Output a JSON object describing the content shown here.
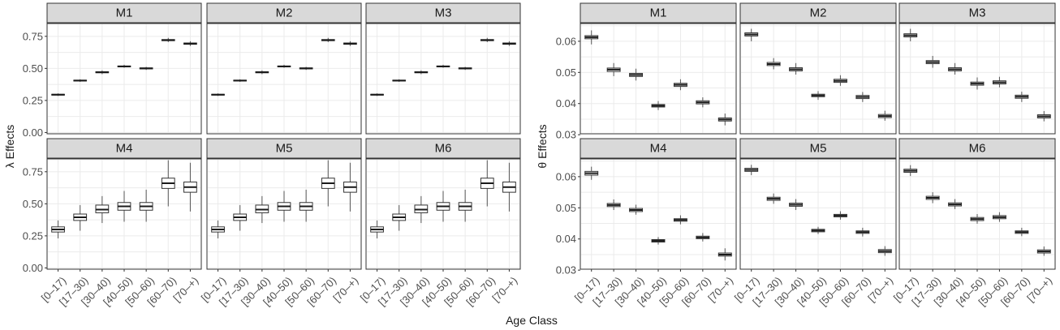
{
  "x_title": "Age Class",
  "chart_data": [
    {
      "type": "boxplot",
      "ylabel": "λ Effects",
      "ylim": [
        -0.01,
        0.85
      ],
      "yticks": [
        0.0,
        0.25,
        0.5,
        0.75
      ],
      "ytick_labels": [
        "0.00",
        "0.25",
        "0.50",
        "0.75"
      ],
      "categories": [
        "[0–17)",
        "[17–30)",
        "[30–40)",
        "[40–50)",
        "[50–60)",
        "[60–70)",
        "[70–+)"
      ],
      "facets": [
        {
          "label": "M1",
          "boxes": [
            {
              "min": 0.285,
              "q1": 0.292,
              "median": 0.295,
              "q3": 0.298,
              "max": 0.305
            },
            {
              "min": 0.395,
              "q1": 0.402,
              "median": 0.405,
              "q3": 0.408,
              "max": 0.415
            },
            {
              "min": 0.455,
              "q1": 0.466,
              "median": 0.47,
              "q3": 0.474,
              "max": 0.485
            },
            {
              "min": 0.505,
              "q1": 0.512,
              "median": 0.515,
              "q3": 0.519,
              "max": 0.528
            },
            {
              "min": 0.488,
              "q1": 0.496,
              "median": 0.5,
              "q3": 0.504,
              "max": 0.512
            },
            {
              "min": 0.705,
              "q1": 0.716,
              "median": 0.72,
              "q3": 0.725,
              "max": 0.738
            },
            {
              "min": 0.675,
              "q1": 0.688,
              "median": 0.693,
              "q3": 0.698,
              "max": 0.712
            }
          ]
        },
        {
          "label": "M2",
          "boxes": [
            {
              "min": 0.285,
              "q1": 0.292,
              "median": 0.295,
              "q3": 0.298,
              "max": 0.305
            },
            {
              "min": 0.395,
              "q1": 0.402,
              "median": 0.405,
              "q3": 0.408,
              "max": 0.415
            },
            {
              "min": 0.455,
              "q1": 0.466,
              "median": 0.47,
              "q3": 0.474,
              "max": 0.485
            },
            {
              "min": 0.505,
              "q1": 0.512,
              "median": 0.515,
              "q3": 0.519,
              "max": 0.528
            },
            {
              "min": 0.488,
              "q1": 0.496,
              "median": 0.5,
              "q3": 0.504,
              "max": 0.512
            },
            {
              "min": 0.705,
              "q1": 0.716,
              "median": 0.72,
              "q3": 0.725,
              "max": 0.738
            },
            {
              "min": 0.675,
              "q1": 0.688,
              "median": 0.693,
              "q3": 0.698,
              "max": 0.712
            }
          ]
        },
        {
          "label": "M3",
          "boxes": [
            {
              "min": 0.285,
              "q1": 0.292,
              "median": 0.295,
              "q3": 0.298,
              "max": 0.305
            },
            {
              "min": 0.395,
              "q1": 0.402,
              "median": 0.405,
              "q3": 0.408,
              "max": 0.415
            },
            {
              "min": 0.455,
              "q1": 0.466,
              "median": 0.47,
              "q3": 0.474,
              "max": 0.485
            },
            {
              "min": 0.505,
              "q1": 0.512,
              "median": 0.515,
              "q3": 0.519,
              "max": 0.528
            },
            {
              "min": 0.488,
              "q1": 0.496,
              "median": 0.5,
              "q3": 0.504,
              "max": 0.512
            },
            {
              "min": 0.705,
              "q1": 0.716,
              "median": 0.72,
              "q3": 0.725,
              "max": 0.738
            },
            {
              "min": 0.675,
              "q1": 0.688,
              "median": 0.693,
              "q3": 0.698,
              "max": 0.712
            }
          ]
        },
        {
          "label": "M4",
          "boxes": [
            {
              "min": 0.23,
              "q1": 0.28,
              "median": 0.3,
              "q3": 0.32,
              "max": 0.37
            },
            {
              "min": 0.29,
              "q1": 0.37,
              "median": 0.395,
              "q3": 0.42,
              "max": 0.49
            },
            {
              "min": 0.35,
              "q1": 0.43,
              "median": 0.455,
              "q3": 0.49,
              "max": 0.56
            },
            {
              "min": 0.36,
              "q1": 0.45,
              "median": 0.48,
              "q3": 0.51,
              "max": 0.6
            },
            {
              "min": 0.36,
              "q1": 0.45,
              "median": 0.48,
              "q3": 0.51,
              "max": 0.61
            },
            {
              "min": 0.48,
              "q1": 0.62,
              "median": 0.66,
              "q3": 0.7,
              "max": 0.84
            },
            {
              "min": 0.44,
              "q1": 0.59,
              "median": 0.63,
              "q3": 0.67,
              "max": 0.82
            }
          ]
        },
        {
          "label": "M5",
          "boxes": [
            {
              "min": 0.23,
              "q1": 0.28,
              "median": 0.3,
              "q3": 0.32,
              "max": 0.37
            },
            {
              "min": 0.29,
              "q1": 0.37,
              "median": 0.395,
              "q3": 0.42,
              "max": 0.49
            },
            {
              "min": 0.35,
              "q1": 0.43,
              "median": 0.455,
              "q3": 0.49,
              "max": 0.56
            },
            {
              "min": 0.36,
              "q1": 0.45,
              "median": 0.48,
              "q3": 0.51,
              "max": 0.6
            },
            {
              "min": 0.36,
              "q1": 0.45,
              "median": 0.48,
              "q3": 0.51,
              "max": 0.61
            },
            {
              "min": 0.48,
              "q1": 0.62,
              "median": 0.66,
              "q3": 0.7,
              "max": 0.84
            },
            {
              "min": 0.44,
              "q1": 0.59,
              "median": 0.63,
              "q3": 0.67,
              "max": 0.82
            }
          ]
        },
        {
          "label": "M6",
          "boxes": [
            {
              "min": 0.23,
              "q1": 0.28,
              "median": 0.3,
              "q3": 0.32,
              "max": 0.37
            },
            {
              "min": 0.29,
              "q1": 0.37,
              "median": 0.395,
              "q3": 0.42,
              "max": 0.49
            },
            {
              "min": 0.35,
              "q1": 0.43,
              "median": 0.455,
              "q3": 0.49,
              "max": 0.56
            },
            {
              "min": 0.36,
              "q1": 0.45,
              "median": 0.48,
              "q3": 0.51,
              "max": 0.6
            },
            {
              "min": 0.36,
              "q1": 0.45,
              "median": 0.48,
              "q3": 0.51,
              "max": 0.61
            },
            {
              "min": 0.48,
              "q1": 0.62,
              "median": 0.66,
              "q3": 0.7,
              "max": 0.84
            },
            {
              "min": 0.44,
              "q1": 0.59,
              "median": 0.63,
              "q3": 0.67,
              "max": 0.82
            }
          ]
        }
      ]
    },
    {
      "type": "boxplot",
      "ylabel": "θ Effects",
      "ylim": [
        0.0303,
        0.0657
      ],
      "yticks": [
        0.03,
        0.04,
        0.05,
        0.06
      ],
      "ytick_labels": [
        "0.03",
        "0.04",
        "0.05",
        "0.06"
      ],
      "categories": [
        "[0–17)",
        "[17–30)",
        "[30–40)",
        "[40–50)",
        "[50–60)",
        "[60–70)",
        "[70–+)"
      ],
      "facets": [
        {
          "label": "M1",
          "boxes": [
            {
              "min": 0.059,
              "q1": 0.0608,
              "median": 0.0613,
              "q3": 0.0618,
              "max": 0.0635
            },
            {
              "min": 0.0488,
              "q1": 0.0503,
              "median": 0.0509,
              "q3": 0.0514,
              "max": 0.053
            },
            {
              "min": 0.0474,
              "q1": 0.0487,
              "median": 0.0492,
              "q3": 0.0497,
              "max": 0.0512
            },
            {
              "min": 0.0379,
              "q1": 0.0389,
              "median": 0.0393,
              "q3": 0.0397,
              "max": 0.0408
            },
            {
              "min": 0.0443,
              "q1": 0.0455,
              "median": 0.046,
              "q3": 0.0465,
              "max": 0.0478
            },
            {
              "min": 0.0388,
              "q1": 0.0399,
              "median": 0.0404,
              "q3": 0.0409,
              "max": 0.042
            },
            {
              "min": 0.033,
              "q1": 0.0344,
              "median": 0.0349,
              "q3": 0.0354,
              "max": 0.0368
            }
          ]
        },
        {
          "label": "M2",
          "boxes": [
            {
              "min": 0.06,
              "q1": 0.0617,
              "median": 0.0622,
              "q3": 0.0627,
              "max": 0.064
            },
            {
              "min": 0.051,
              "q1": 0.0522,
              "median": 0.0527,
              "q3": 0.0532,
              "max": 0.0546
            },
            {
              "min": 0.0493,
              "q1": 0.0505,
              "median": 0.051,
              "q3": 0.0515,
              "max": 0.053
            },
            {
              "min": 0.0412,
              "q1": 0.0422,
              "median": 0.0426,
              "q3": 0.043,
              "max": 0.044
            },
            {
              "min": 0.0457,
              "q1": 0.0468,
              "median": 0.0473,
              "q3": 0.0478,
              "max": 0.0491
            },
            {
              "min": 0.0405,
              "q1": 0.0416,
              "median": 0.0421,
              "q3": 0.0426,
              "max": 0.0437
            },
            {
              "min": 0.0345,
              "q1": 0.0355,
              "median": 0.036,
              "q3": 0.0365,
              "max": 0.0377
            }
          ]
        },
        {
          "label": "M3",
          "boxes": [
            {
              "min": 0.06,
              "q1": 0.0614,
              "median": 0.0619,
              "q3": 0.0624,
              "max": 0.064
            },
            {
              "min": 0.0515,
              "q1": 0.0528,
              "median": 0.0533,
              "q3": 0.0538,
              "max": 0.0553
            },
            {
              "min": 0.0493,
              "q1": 0.0505,
              "median": 0.051,
              "q3": 0.0515,
              "max": 0.053
            },
            {
              "min": 0.0445,
              "q1": 0.0459,
              "median": 0.0464,
              "q3": 0.0469,
              "max": 0.0484
            },
            {
              "min": 0.0452,
              "q1": 0.0463,
              "median": 0.0468,
              "q3": 0.0473,
              "max": 0.0486
            },
            {
              "min": 0.0405,
              "q1": 0.0417,
              "median": 0.0422,
              "q3": 0.0427,
              "max": 0.0438
            },
            {
              "min": 0.0343,
              "q1": 0.0354,
              "median": 0.0359,
              "q3": 0.0364,
              "max": 0.0376
            }
          ]
        },
        {
          "label": "M4",
          "boxes": [
            {
              "min": 0.059,
              "q1": 0.0605,
              "median": 0.0611,
              "q3": 0.0617,
              "max": 0.0632
            },
            {
              "min": 0.0493,
              "q1": 0.0504,
              "median": 0.0509,
              "q3": 0.0514,
              "max": 0.0527
            },
            {
              "min": 0.0478,
              "q1": 0.0488,
              "median": 0.0493,
              "q3": 0.0498,
              "max": 0.051
            },
            {
              "min": 0.0382,
              "q1": 0.039,
              "median": 0.0394,
              "q3": 0.0398,
              "max": 0.0406
            },
            {
              "min": 0.0447,
              "q1": 0.0457,
              "median": 0.0461,
              "q3": 0.0465,
              "max": 0.0476
            },
            {
              "min": 0.0392,
              "q1": 0.0401,
              "median": 0.0405,
              "q3": 0.0409,
              "max": 0.0419
            },
            {
              "min": 0.0331,
              "q1": 0.0345,
              "median": 0.035,
              "q3": 0.0355,
              "max": 0.037
            }
          ]
        },
        {
          "label": "M5",
          "boxes": [
            {
              "min": 0.0605,
              "q1": 0.0617,
              "median": 0.0622,
              "q3": 0.0627,
              "max": 0.0638
            },
            {
              "min": 0.0513,
              "q1": 0.0524,
              "median": 0.0529,
              "q3": 0.0534,
              "max": 0.0546
            },
            {
              "min": 0.0493,
              "q1": 0.0505,
              "median": 0.051,
              "q3": 0.0515,
              "max": 0.0528
            },
            {
              "min": 0.0416,
              "q1": 0.0423,
              "median": 0.0427,
              "q3": 0.0431,
              "max": 0.0439
            },
            {
              "min": 0.0462,
              "q1": 0.0471,
              "median": 0.0475,
              "q3": 0.0479,
              "max": 0.0489
            },
            {
              "min": 0.0408,
              "q1": 0.0418,
              "median": 0.0422,
              "q3": 0.0426,
              "max": 0.0436
            },
            {
              "min": 0.0346,
              "q1": 0.0356,
              "median": 0.0361,
              "q3": 0.0366,
              "max": 0.0377
            }
          ]
        },
        {
          "label": "M6",
          "boxes": [
            {
              "min": 0.0602,
              "q1": 0.0614,
              "median": 0.0619,
              "q3": 0.0624,
              "max": 0.0637
            },
            {
              "min": 0.0515,
              "q1": 0.0527,
              "median": 0.0532,
              "q3": 0.0537,
              "max": 0.055
            },
            {
              "min": 0.0496,
              "q1": 0.0506,
              "median": 0.0511,
              "q3": 0.0516,
              "max": 0.0528
            },
            {
              "min": 0.0449,
              "q1": 0.0459,
              "median": 0.0464,
              "q3": 0.0469,
              "max": 0.048
            },
            {
              "min": 0.0455,
              "q1": 0.0465,
              "median": 0.047,
              "q3": 0.0475,
              "max": 0.0486
            },
            {
              "min": 0.0409,
              "q1": 0.0418,
              "median": 0.0422,
              "q3": 0.0426,
              "max": 0.0436
            },
            {
              "min": 0.0346,
              "q1": 0.0355,
              "median": 0.036,
              "q3": 0.0365,
              "max": 0.0376
            }
          ]
        }
      ]
    }
  ]
}
